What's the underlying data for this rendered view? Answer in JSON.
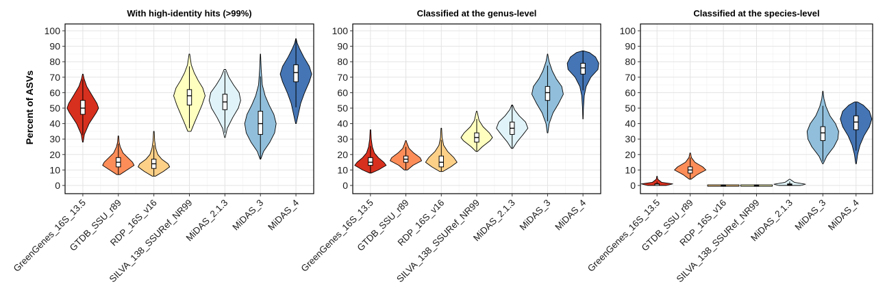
{
  "y_axis_label": "Percent of ASVs",
  "chart_data": [
    {
      "type": "violin",
      "title": "With high-identity hits (>99%)",
      "ylabel": "Percent of ASVs",
      "ylim": [
        0,
        100
      ],
      "yticks": [
        0,
        10,
        20,
        30,
        40,
        50,
        60,
        70,
        80,
        90,
        100
      ],
      "grid": true,
      "categories": [
        "GreenGenes_16S_13.5",
        "GTDB_SSU_r89",
        "RDP_16S_v16",
        "SILVA_138_SSURef_NR99",
        "MiDAS_2.1.3",
        "MiDAS_3",
        "MiDAS_4"
      ],
      "colors": [
        "#d7301f",
        "#fc8d59",
        "#fdd088",
        "#ffffbf",
        "#e0f3f8",
        "#91bfdb",
        "#4575b4"
      ],
      "violins": [
        {
          "min": 28,
          "max": 72,
          "q1": 46,
          "median": 50,
          "q3": 55,
          "profile": [
            [
              28,
              0.02
            ],
            [
              33,
              0.1
            ],
            [
              40,
              0.4
            ],
            [
              47,
              0.85
            ],
            [
              50,
              1
            ],
            [
              53,
              0.9
            ],
            [
              58,
              0.6
            ],
            [
              64,
              0.25
            ],
            [
              69,
              0.08
            ],
            [
              72,
              0.02
            ]
          ]
        },
        {
          "min": 7,
          "max": 32,
          "q1": 12,
          "median": 15,
          "q3": 18,
          "profile": [
            [
              7,
              0.1
            ],
            [
              10,
              0.55
            ],
            [
              13,
              1
            ],
            [
              15,
              0.9
            ],
            [
              18,
              0.6
            ],
            [
              21,
              0.3
            ],
            [
              25,
              0.12
            ],
            [
              28,
              0.05
            ],
            [
              32,
              0.02
            ]
          ]
        },
        {
          "min": 6,
          "max": 35,
          "q1": 11,
          "median": 14,
          "q3": 17,
          "profile": [
            [
              6,
              0.1
            ],
            [
              9,
              0.6
            ],
            [
              12,
              1
            ],
            [
              14,
              0.9
            ],
            [
              17,
              0.5
            ],
            [
              20,
              0.25
            ],
            [
              24,
              0.12
            ],
            [
              29,
              0.05
            ],
            [
              35,
              0.02
            ]
          ]
        },
        {
          "min": 35,
          "max": 85,
          "q1": 52,
          "median": 58,
          "q3": 62,
          "profile": [
            [
              35,
              0.1
            ],
            [
              40,
              0.3
            ],
            [
              46,
              0.55
            ],
            [
              52,
              0.8
            ],
            [
              58,
              1
            ],
            [
              63,
              0.85
            ],
            [
              68,
              0.55
            ],
            [
              73,
              0.3
            ],
            [
              78,
              0.12
            ],
            [
              85,
              0.02
            ]
          ]
        },
        {
          "min": 31,
          "max": 75,
          "q1": 49,
          "median": 54,
          "q3": 59,
          "profile": [
            [
              31,
              0.02
            ],
            [
              37,
              0.15
            ],
            [
              44,
              0.5
            ],
            [
              50,
              0.85
            ],
            [
              55,
              1
            ],
            [
              60,
              0.9
            ],
            [
              65,
              0.55
            ],
            [
              70,
              0.25
            ],
            [
              75,
              0.05
            ]
          ]
        },
        {
          "min": 17,
          "max": 85,
          "q1": 33,
          "median": 40,
          "q3": 48,
          "profile": [
            [
              17,
              0.02
            ],
            [
              22,
              0.2
            ],
            [
              28,
              0.6
            ],
            [
              34,
              0.9
            ],
            [
              40,
              1
            ],
            [
              46,
              0.85
            ],
            [
              52,
              0.55
            ],
            [
              58,
              0.3
            ],
            [
              65,
              0.12
            ],
            [
              75,
              0.05
            ],
            [
              85,
              0.01
            ]
          ]
        },
        {
          "min": 40,
          "max": 95,
          "q1": 67,
          "median": 73,
          "q3": 78,
          "profile": [
            [
              40,
              0.02
            ],
            [
              46,
              0.15
            ],
            [
              53,
              0.3
            ],
            [
              60,
              0.55
            ],
            [
              67,
              0.85
            ],
            [
              72,
              1
            ],
            [
              77,
              0.85
            ],
            [
              83,
              0.5
            ],
            [
              88,
              0.25
            ],
            [
              92,
              0.08
            ],
            [
              95,
              0.01
            ]
          ]
        }
      ]
    },
    {
      "type": "violin",
      "title": "Classified at the genus-level",
      "ylim": [
        0,
        100
      ],
      "yticks": [
        0,
        10,
        20,
        30,
        40,
        50,
        60,
        70,
        80,
        90,
        100
      ],
      "grid": true,
      "categories": [
        "GreenGenes_16S_13.5",
        "GTDB_SSU_r89",
        "RDP_16S_v16",
        "SILVA_138_SSURef_NR99",
        "MiDAS_2.1.3",
        "MiDAS_3",
        "MiDAS_4"
      ],
      "colors": [
        "#d7301f",
        "#fc8d59",
        "#fdd088",
        "#ffffbf",
        "#e0f3f8",
        "#91bfdb",
        "#4575b4"
      ],
      "violins": [
        {
          "min": 8,
          "max": 36,
          "q1": 13,
          "median": 15,
          "q3": 18,
          "profile": [
            [
              8,
              0.05
            ],
            [
              10,
              0.5
            ],
            [
              13,
              1
            ],
            [
              15,
              0.85
            ],
            [
              18,
              0.5
            ],
            [
              21,
              0.25
            ],
            [
              25,
              0.12
            ],
            [
              30,
              0.05
            ],
            [
              36,
              0.02
            ]
          ]
        },
        {
          "min": 10,
          "max": 29,
          "q1": 15,
          "median": 17,
          "q3": 19,
          "profile": [
            [
              10,
              0.1
            ],
            [
              13,
              0.45
            ],
            [
              16,
              1
            ],
            [
              18,
              0.9
            ],
            [
              21,
              0.5
            ],
            [
              24,
              0.2
            ],
            [
              27,
              0.08
            ],
            [
              29,
              0.02
            ]
          ]
        },
        {
          "min": 9,
          "max": 37,
          "q1": 12,
          "median": 15,
          "q3": 19,
          "profile": [
            [
              9,
              0.1
            ],
            [
              12,
              0.6
            ],
            [
              15,
              1
            ],
            [
              18,
              0.8
            ],
            [
              22,
              0.4
            ],
            [
              26,
              0.15
            ],
            [
              31,
              0.05
            ],
            [
              37,
              0.02
            ]
          ]
        },
        {
          "min": 22,
          "max": 48,
          "q1": 28,
          "median": 31,
          "q3": 34,
          "profile": [
            [
              22,
              0.05
            ],
            [
              25,
              0.35
            ],
            [
              29,
              0.85
            ],
            [
              31,
              1
            ],
            [
              34,
              0.8
            ],
            [
              38,
              0.4
            ],
            [
              42,
              0.15
            ],
            [
              48,
              0.02
            ]
          ]
        },
        {
          "min": 24,
          "max": 52,
          "q1": 33,
          "median": 37,
          "q3": 41,
          "profile": [
            [
              24,
              0.05
            ],
            [
              28,
              0.3
            ],
            [
              33,
              0.7
            ],
            [
              37,
              1
            ],
            [
              41,
              0.85
            ],
            [
              45,
              0.45
            ],
            [
              49,
              0.15
            ],
            [
              52,
              0.03
            ]
          ]
        },
        {
          "min": 34,
          "max": 85,
          "q1": 55,
          "median": 60,
          "q3": 64,
          "profile": [
            [
              34,
              0.02
            ],
            [
              40,
              0.1
            ],
            [
              47,
              0.35
            ],
            [
              53,
              0.7
            ],
            [
              59,
              1
            ],
            [
              64,
              0.9
            ],
            [
              69,
              0.55
            ],
            [
              74,
              0.3
            ],
            [
              80,
              0.1
            ],
            [
              85,
              0.01
            ]
          ]
        },
        {
          "min": 43,
          "max": 87,
          "q1": 72,
          "median": 76,
          "q3": 79,
          "profile": [
            [
              43,
              0.01
            ],
            [
              50,
              0.03
            ],
            [
              58,
              0.08
            ],
            [
              64,
              0.2
            ],
            [
              70,
              0.5
            ],
            [
              75,
              0.95
            ],
            [
              79,
              1
            ],
            [
              83,
              0.8
            ],
            [
              86,
              0.4
            ],
            [
              87,
              0.05
            ]
          ]
        }
      ]
    },
    {
      "type": "violin",
      "title": "Classified at the species-level",
      "ylim": [
        0,
        100
      ],
      "yticks": [
        0,
        10,
        20,
        30,
        40,
        50,
        60,
        70,
        80,
        90,
        100
      ],
      "grid": true,
      "categories": [
        "GreenGenes_16S_13.5",
        "GTDB_SSU_r89",
        "RDP_16S_v16",
        "SILVA_138_SSURef_NR99",
        "MiDAS_2.1.3",
        "MiDAS_3",
        "MiDAS_4"
      ],
      "colors": [
        "#d7301f",
        "#fc8d59",
        "#fdd088",
        "#ffffbf",
        "#e0f3f8",
        "#91bfdb",
        "#4575b4"
      ],
      "violins": [
        {
          "min": 0,
          "max": 6,
          "q1": 0,
          "median": 1,
          "q3": 1,
          "profile": [
            [
              0,
              0.6
            ],
            [
              1,
              1
            ],
            [
              2,
              0.3
            ],
            [
              4,
              0.05
            ],
            [
              6,
              0.01
            ]
          ]
        },
        {
          "min": 4,
          "max": 21,
          "q1": 8,
          "median": 10,
          "q3": 12,
          "profile": [
            [
              4,
              0.05
            ],
            [
              7,
              0.45
            ],
            [
              10,
              1
            ],
            [
              12,
              0.8
            ],
            [
              15,
              0.3
            ],
            [
              18,
              0.08
            ],
            [
              21,
              0.02
            ]
          ]
        },
        {
          "min": 0,
          "max": 0.4,
          "q1": 0,
          "median": 0,
          "q3": 0,
          "profile": [
            [
              -0.5,
              1
            ],
            [
              0,
              1
            ],
            [
              0.4,
              1
            ]
          ]
        },
        {
          "min": 0,
          "max": 0.4,
          "q1": 0,
          "median": 0,
          "q3": 0,
          "profile": [
            [
              -0.5,
              1
            ],
            [
              0,
              1
            ],
            [
              0.4,
              1
            ]
          ]
        },
        {
          "min": 0,
          "max": 4,
          "q1": 0,
          "median": 0.5,
          "q3": 1,
          "profile": [
            [
              0,
              0.7
            ],
            [
              0.8,
              1
            ],
            [
              2,
              0.3
            ],
            [
              4,
              0.02
            ]
          ]
        },
        {
          "min": 14,
          "max": 61,
          "q1": 29,
          "median": 34,
          "q3": 38,
          "profile": [
            [
              14,
              0.02
            ],
            [
              19,
              0.25
            ],
            [
              25,
              0.7
            ],
            [
              30,
              0.95
            ],
            [
              35,
              1
            ],
            [
              40,
              0.8
            ],
            [
              45,
              0.45
            ],
            [
              51,
              0.2
            ],
            [
              56,
              0.07
            ],
            [
              61,
              0.01
            ]
          ]
        },
        {
          "min": 14,
          "max": 54,
          "q1": 36,
          "median": 41,
          "q3": 45,
          "profile": [
            [
              14,
              0.02
            ],
            [
              20,
              0.1
            ],
            [
              26,
              0.25
            ],
            [
              32,
              0.5
            ],
            [
              38,
              0.85
            ],
            [
              43,
              1
            ],
            [
              48,
              0.85
            ],
            [
              52,
              0.45
            ],
            [
              54,
              0.1
            ]
          ]
        }
      ]
    }
  ]
}
